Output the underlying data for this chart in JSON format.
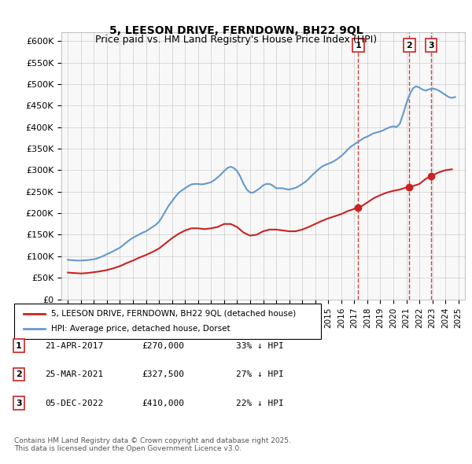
{
  "title": "5, LEESON DRIVE, FERNDOWN, BH22 9QL",
  "subtitle": "Price paid vs. HM Land Registry's House Price Index (HPI)",
  "ylabel_ticks": [
    "£0",
    "£50K",
    "£100K",
    "£150K",
    "£200K",
    "£250K",
    "£300K",
    "£350K",
    "£400K",
    "£450K",
    "£500K",
    "£550K",
    "£600K"
  ],
  "ylim": [
    0,
    620000
  ],
  "xlim": [
    1994.5,
    2025.5
  ],
  "xticks": [
    1995,
    1996,
    1997,
    1998,
    1999,
    2000,
    2001,
    2002,
    2003,
    2004,
    2005,
    2006,
    2007,
    2008,
    2009,
    2010,
    2011,
    2012,
    2013,
    2014,
    2015,
    2016,
    2017,
    2018,
    2019,
    2020,
    2021,
    2022,
    2023,
    2024,
    2025
  ],
  "hpi_x": [
    1995.0,
    1995.25,
    1995.5,
    1995.75,
    1996.0,
    1996.25,
    1996.5,
    1996.75,
    1997.0,
    1997.25,
    1997.5,
    1997.75,
    1998.0,
    1998.25,
    1998.5,
    1998.75,
    1999.0,
    1999.25,
    1999.5,
    1999.75,
    2000.0,
    2000.25,
    2000.5,
    2000.75,
    2001.0,
    2001.25,
    2001.5,
    2001.75,
    2002.0,
    2002.25,
    2002.5,
    2002.75,
    2003.0,
    2003.25,
    2003.5,
    2003.75,
    2004.0,
    2004.25,
    2004.5,
    2004.75,
    2005.0,
    2005.25,
    2005.5,
    2005.75,
    2006.0,
    2006.25,
    2006.5,
    2006.75,
    2007.0,
    2007.25,
    2007.5,
    2007.75,
    2008.0,
    2008.25,
    2008.5,
    2008.75,
    2009.0,
    2009.25,
    2009.5,
    2009.75,
    2010.0,
    2010.25,
    2010.5,
    2010.75,
    2011.0,
    2011.25,
    2011.5,
    2011.75,
    2012.0,
    2012.25,
    2012.5,
    2012.75,
    2013.0,
    2013.25,
    2013.5,
    2013.75,
    2014.0,
    2014.25,
    2014.5,
    2014.75,
    2015.0,
    2015.25,
    2015.5,
    2015.75,
    2016.0,
    2016.25,
    2016.5,
    2016.75,
    2017.0,
    2017.25,
    2017.5,
    2017.75,
    2018.0,
    2018.25,
    2018.5,
    2018.75,
    2019.0,
    2019.25,
    2019.5,
    2019.75,
    2020.0,
    2020.25,
    2020.5,
    2020.75,
    2021.0,
    2021.25,
    2021.5,
    2021.75,
    2022.0,
    2022.25,
    2022.5,
    2022.75,
    2023.0,
    2023.25,
    2023.5,
    2023.75,
    2024.0,
    2024.25,
    2024.5,
    2024.75
  ],
  "hpi_y": [
    92000,
    91000,
    90500,
    90000,
    90000,
    90500,
    91000,
    92000,
    93000,
    95000,
    98000,
    101000,
    105000,
    108000,
    112000,
    116000,
    120000,
    126000,
    132000,
    138000,
    143000,
    147000,
    151000,
    155000,
    158000,
    163000,
    168000,
    173000,
    180000,
    192000,
    205000,
    218000,
    228000,
    238000,
    247000,
    253000,
    258000,
    263000,
    267000,
    268000,
    268000,
    267000,
    268000,
    270000,
    272000,
    277000,
    283000,
    290000,
    298000,
    305000,
    308000,
    305000,
    298000,
    285000,
    268000,
    255000,
    248000,
    248000,
    253000,
    258000,
    265000,
    268000,
    268000,
    264000,
    258000,
    258000,
    258000,
    256000,
    255000,
    257000,
    259000,
    263000,
    268000,
    273000,
    280000,
    288000,
    295000,
    302000,
    308000,
    312000,
    315000,
    318000,
    322000,
    327000,
    333000,
    340000,
    348000,
    355000,
    360000,
    365000,
    370000,
    375000,
    378000,
    382000,
    386000,
    388000,
    390000,
    393000,
    397000,
    400000,
    402000,
    400000,
    408000,
    430000,
    455000,
    475000,
    490000,
    495000,
    492000,
    487000,
    485000,
    488000,
    490000,
    488000,
    485000,
    480000,
    475000,
    470000,
    468000,
    470000
  ],
  "red_x": [
    1995.0,
    1995.5,
    1996.0,
    1996.5,
    1997.0,
    1997.5,
    1998.0,
    1998.5,
    1999.0,
    1999.5,
    2000.0,
    2000.5,
    2001.0,
    2001.5,
    2002.0,
    2002.5,
    2003.0,
    2003.5,
    2004.0,
    2004.5,
    2005.0,
    2005.5,
    2006.0,
    2006.5,
    2007.0,
    2007.5,
    2008.0,
    2008.5,
    2009.0,
    2009.5,
    2010.0,
    2010.5,
    2011.0,
    2011.5,
    2012.0,
    2012.5,
    2013.0,
    2013.5,
    2014.0,
    2014.5,
    2015.0,
    2015.5,
    2016.0,
    2016.5,
    2017.0,
    2017.5,
    2018.0,
    2018.5,
    2019.0,
    2019.5,
    2020.0,
    2020.5,
    2021.0,
    2021.5,
    2022.0,
    2022.5,
    2023.0,
    2023.5,
    2024.0,
    2024.5
  ],
  "red_y": [
    62000,
    61000,
    60000,
    61000,
    63000,
    65000,
    68000,
    72000,
    77000,
    84000,
    90000,
    97000,
    103000,
    110000,
    118000,
    130000,
    142000,
    152000,
    160000,
    165000,
    165000,
    163000,
    165000,
    168000,
    175000,
    175000,
    168000,
    155000,
    148000,
    150000,
    158000,
    162000,
    162000,
    160000,
    158000,
    158000,
    162000,
    168000,
    175000,
    182000,
    188000,
    193000,
    198000,
    205000,
    210000,
    215000,
    225000,
    235000,
    242000,
    248000,
    252000,
    255000,
    260000,
    263000,
    268000,
    280000,
    288000,
    295000,
    300000,
    302000
  ],
  "transactions": [
    {
      "x": 2017.31,
      "label": "1",
      "price": 270000,
      "date": "21-APR-2017",
      "pct": "33% ↓ HPI"
    },
    {
      "x": 2021.23,
      "label": "2",
      "price": 327500,
      "date": "25-MAR-2021",
      "pct": "27% ↓ HPI"
    },
    {
      "x": 2022.92,
      "label": "3",
      "price": 410000,
      "date": "05-DEC-2022",
      "pct": "22% ↓ HPI"
    }
  ],
  "legend_line1": "5, LEESON DRIVE, FERNDOWN, BH22 9QL (detached house)",
  "legend_line2": "HPI: Average price, detached house, Dorset",
  "footnote": "Contains HM Land Registry data © Crown copyright and database right 2025.\nThis data is licensed under the Open Government Licence v3.0.",
  "hpi_color": "#6699cc",
  "red_color": "#cc2222",
  "background_color": "#f8f8f8",
  "grid_color": "#cccccc"
}
